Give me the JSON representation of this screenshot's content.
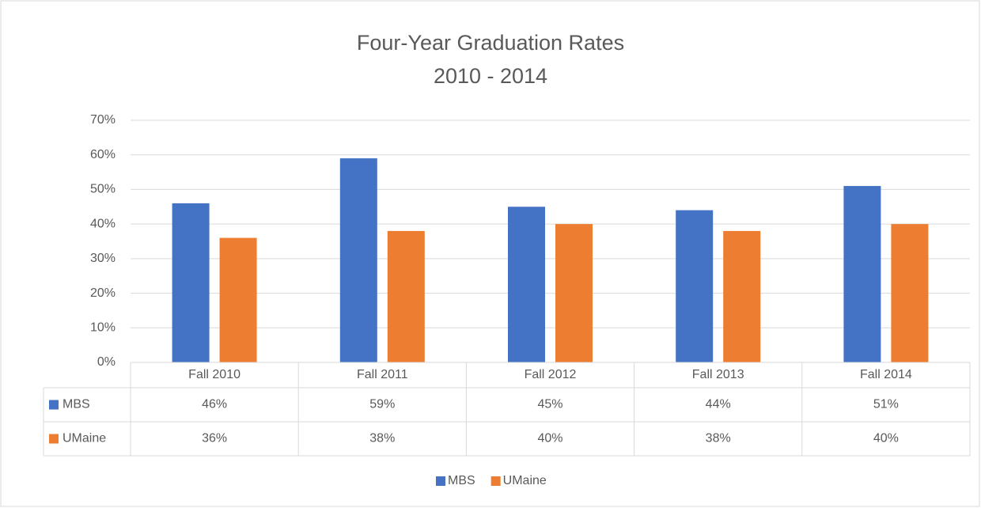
{
  "chart_data": {
    "type": "bar",
    "title": [
      "Four-Year Graduation Rates",
      "2010 - 2014"
    ],
    "categories": [
      "Fall 2010",
      "Fall 2011",
      "Fall 2012",
      "Fall 2013",
      "Fall 2014"
    ],
    "series": [
      {
        "name": "MBS",
        "color": "#4472c4",
        "values": [
          46,
          59,
          45,
          44,
          51
        ],
        "value_labels": [
          "46%",
          "59%",
          "45%",
          "44%",
          "51%"
        ]
      },
      {
        "name": "UMaine",
        "color": "#ed7d31",
        "values": [
          36,
          38,
          40,
          38,
          40
        ],
        "value_labels": [
          "36%",
          "38%",
          "40%",
          "38%",
          "40%"
        ]
      }
    ],
    "ylim": [
      0,
      70
    ],
    "yticks": [
      {
        "value": 0,
        "label": "0%"
      },
      {
        "value": 10,
        "label": "10%"
      },
      {
        "value": 20,
        "label": "20%"
      },
      {
        "value": 30,
        "label": "30%"
      },
      {
        "value": 40,
        "label": "40%"
      },
      {
        "value": 50,
        "label": "50%"
      },
      {
        "value": 60,
        "label": "60%"
      },
      {
        "value": 70,
        "label": "70%"
      }
    ],
    "grid": true,
    "legend": "bottom"
  }
}
